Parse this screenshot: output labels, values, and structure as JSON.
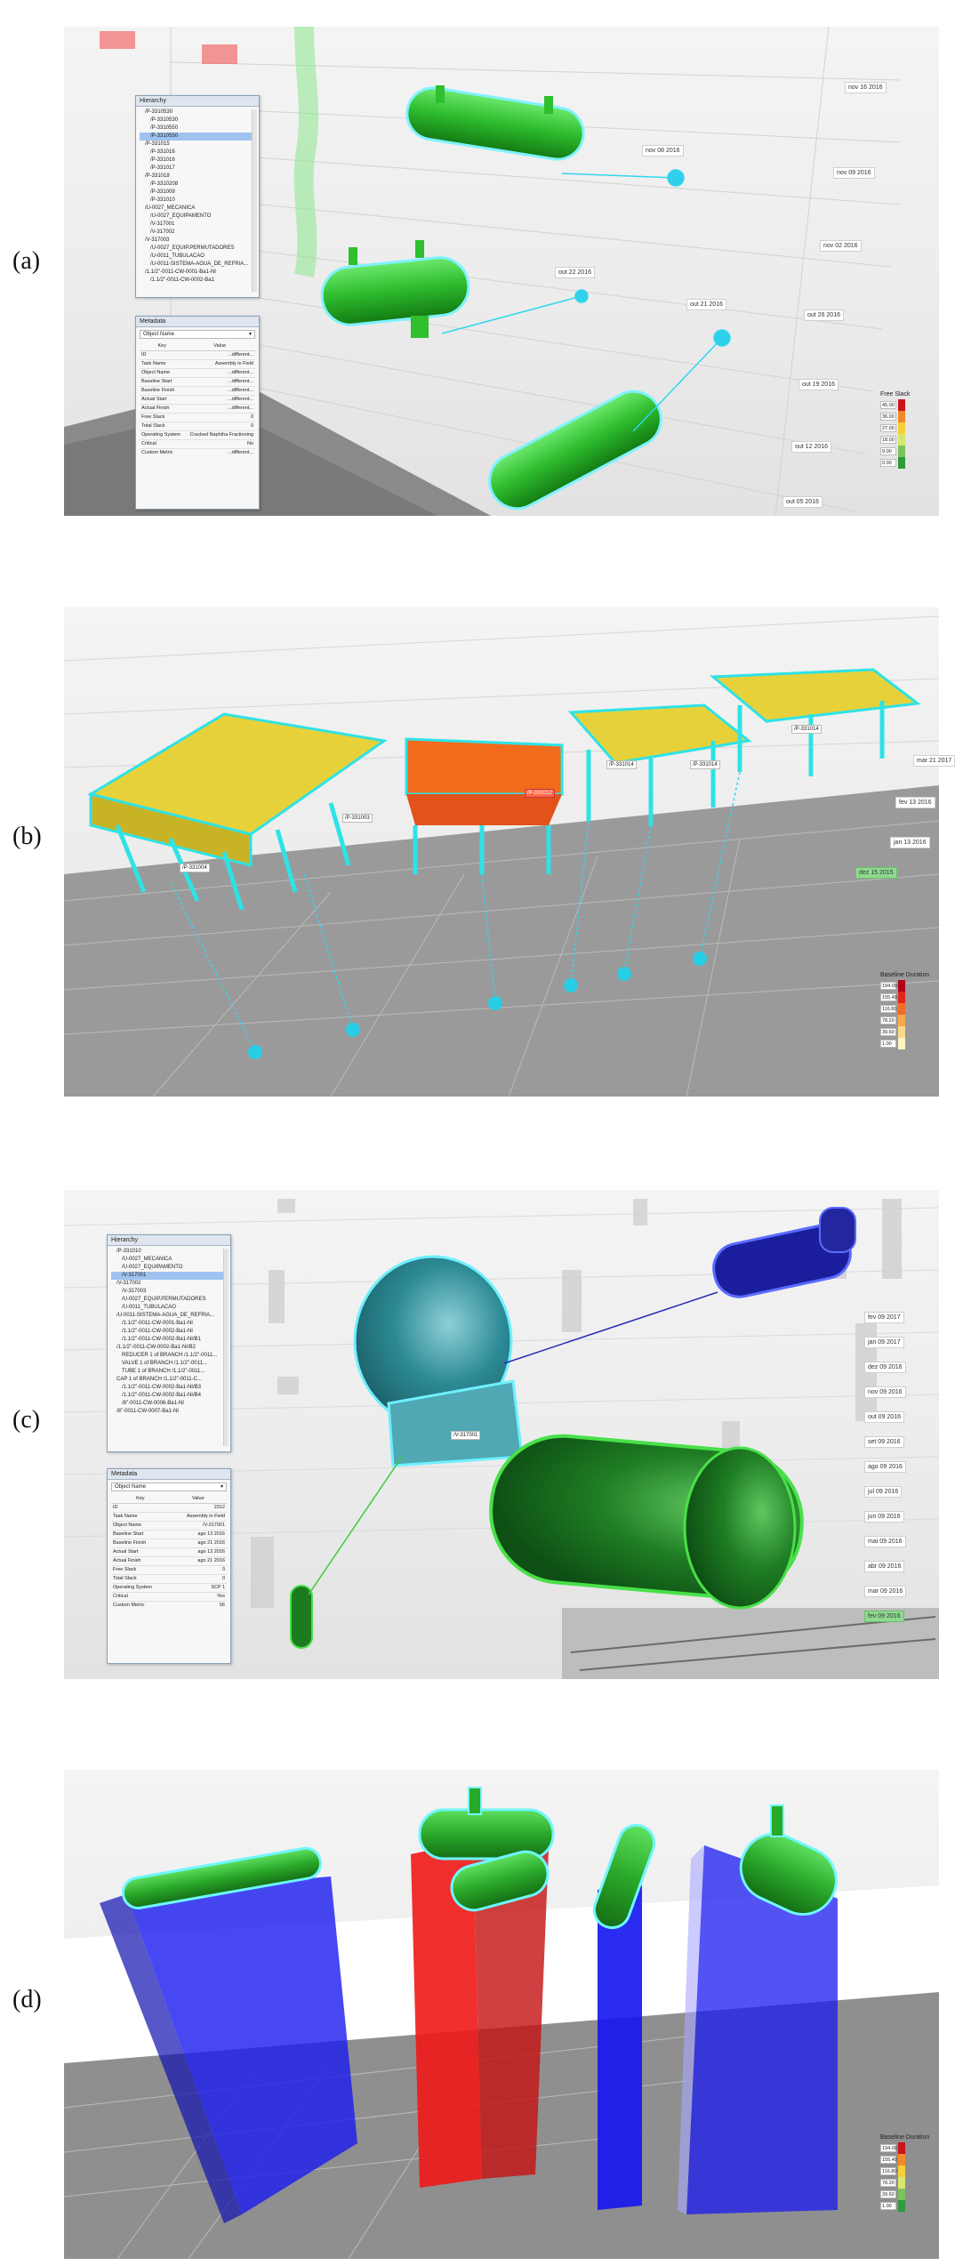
{
  "panels": [
    {
      "letter": "(a)",
      "hierarchy": {
        "title": "Hierarchy",
        "items": [
          "/P-3310530",
          "/P-3310530",
          "/P-3310550",
          "/P-3310550",
          "/P-331015",
          "/P-331016",
          "/P-331016",
          "/P-331017",
          "/P-331018",
          "/P-3310208",
          "/P-331009",
          "/P-331010",
          "/U-0027_MECANICA",
          "/U-0027_EQUIPAMENTO",
          "/V-317001",
          "/V-317002",
          "/V-317003",
          "/U-0027_EQUIP.PERMUTADORES",
          "/U-0011_TUBULACAO",
          "/U-0011-SISTEMA-AGUA_DE_REFRIA...",
          "/1.1/2\"-0011-CW-0001-Ba1-NI",
          "/1.1/2\"-0011-CW-0002-Ba1"
        ],
        "selected_index": 3
      },
      "metadata": {
        "title": "Metadata",
        "select": "Object Name",
        "col_key": "Key",
        "col_value": "Value",
        "rows": [
          {
            "k": "ID",
            "v": "...different..."
          },
          {
            "k": "Task Name",
            "v": "Assembly in Field"
          },
          {
            "k": "Object Name",
            "v": "...different..."
          },
          {
            "k": "Baseline Start",
            "v": "...different..."
          },
          {
            "k": "Baseline Finish",
            "v": "...different..."
          },
          {
            "k": "Actual Start",
            "v": "...different..."
          },
          {
            "k": "Actual Finish",
            "v": "...different..."
          },
          {
            "k": "Free Slack",
            "v": "0"
          },
          {
            "k": "Total Slack",
            "v": "0"
          },
          {
            "k": "Operating System",
            "v": "Cracked Naphtha Fractioning"
          },
          {
            "k": "Critical",
            "v": "No"
          },
          {
            "k": "Custom Metric",
            "v": "...different..."
          }
        ]
      },
      "dates": [
        "nov 16 2016",
        "nov 09 2016",
        "nov 08 2016",
        "nov 02 2016",
        "out 22 2016",
        "out 21 2016",
        "out 26 2016",
        "out 19 2016",
        "out 12 2016",
        "out 05 2016"
      ],
      "legend": {
        "title": "Free Slack",
        "values": [
          "45.00",
          "36.00",
          "27.00",
          "18.00",
          "9.00",
          "0.00"
        ],
        "colors": [
          "#c8141e",
          "#f08a28",
          "#f7cf3a",
          "#d7e66e",
          "#7cc35a",
          "#2e9a3c"
        ]
      }
    },
    {
      "letter": "(b)",
      "tags": [
        "/P-331003",
        "/P-331004",
        "/P-331012",
        "/P-331014",
        "/P-331014",
        "/P-331014"
      ],
      "dates": [
        "mar 21 2017",
        "fev 13 2016",
        "jan 13 2016",
        "dez 15 2015"
      ],
      "legend": {
        "title": "Baseline Duration",
        "values": [
          "194.00",
          "155.40",
          "116.80",
          "78.20",
          "39.60",
          "1.00"
        ],
        "colors": [
          "#b3001b",
          "#e0261a",
          "#f26b2a",
          "#f8a94b",
          "#fbd98a",
          "#fff5c2"
        ]
      }
    },
    {
      "letter": "(c)",
      "hierarchy": {
        "title": "Hierarchy",
        "items": [
          "/P-331010",
          "/U-0027_MECANICA",
          "/U-0027_EQUIPAMENTO",
          "/V-317001",
          "/V-317002",
          "/V-317003",
          "/U-0027_EQUIP.PERMUTADORES",
          "/U-0011_TUBULACAO",
          "/U-0011-SISTEMA-AGUA_DE_REFRIA...",
          "/1.1/2\"-0011-CW-0001-Ba1-NI",
          "/1.1/2\"-0011-CW-0002-Ba1-NI",
          "/1.1/2\"-0011-CW-0002-Ba1-NI/B1",
          "/1.1/2\"-0011-CW-0002-Ba1-NI/B2",
          "REDUCER 1 of BRANCH /1.1/2\"-0011...",
          "VALVE 1 of BRANCH /1.1/2\"-0011...",
          "TUBE 1 of BRANCH /1.1/2\"-0011...",
          "CAP 1 of BRANCH /1.1/2\"-0011-C...",
          "/1.1/2\"-0011-CW-0002-Ba1-NI/B3",
          "/1.1/2\"-0011-CW-0002-Ba1-NI/B4",
          "/8\"-0011-CW-0006-Ba1-NI",
          "/8\"-0011-CW-0007-Ba1-NI"
        ],
        "selected_index": 3
      },
      "metadata": {
        "title": "Metadata",
        "select": "Object Name",
        "col_key": "Key",
        "col_value": "Value",
        "rows": [
          {
            "k": "ID",
            "v": "2312"
          },
          {
            "k": "Task Name",
            "v": "Assembly in Field"
          },
          {
            "k": "Object Name",
            "v": "/V-317001"
          },
          {
            "k": "Baseline Start",
            "v": "ago 13 2016"
          },
          {
            "k": "Baseline Finish",
            "v": "ago 21 2016"
          },
          {
            "k": "Actual Start",
            "v": "ago 13 2016"
          },
          {
            "k": "Actual Finish",
            "v": "ago 21 2016"
          },
          {
            "k": "Free Slack",
            "v": "0"
          },
          {
            "k": "Total Slack",
            "v": "0"
          },
          {
            "k": "Operating System",
            "v": "SCP 1"
          },
          {
            "k": "Critical",
            "v": "Yes"
          },
          {
            "k": "Custom Metric",
            "v": "56"
          }
        ]
      },
      "tag": "/V-317001",
      "dates": [
        "fev 09 2017",
        "jan 09 2017",
        "dez 09 2016",
        "nov 09 2016",
        "out 09 2016",
        "set 09 2016",
        "ago 09 2016",
        "jul 09 2016",
        "jun 09 2016",
        "mai 09 2016",
        "abr 09 2016",
        "mar 09 2016",
        "fev 09 2016"
      ]
    },
    {
      "letter": "(d)",
      "legend": {
        "title": "Baseline Duration",
        "values": [
          "194.00",
          "155.40",
          "116.80",
          "78.20",
          "39.60",
          "1.00"
        ],
        "colors": [
          "#c8141e",
          "#f08a28",
          "#f7cf3a",
          "#d7e66e",
          "#7cc35a",
          "#2e9a3c"
        ]
      }
    }
  ]
}
